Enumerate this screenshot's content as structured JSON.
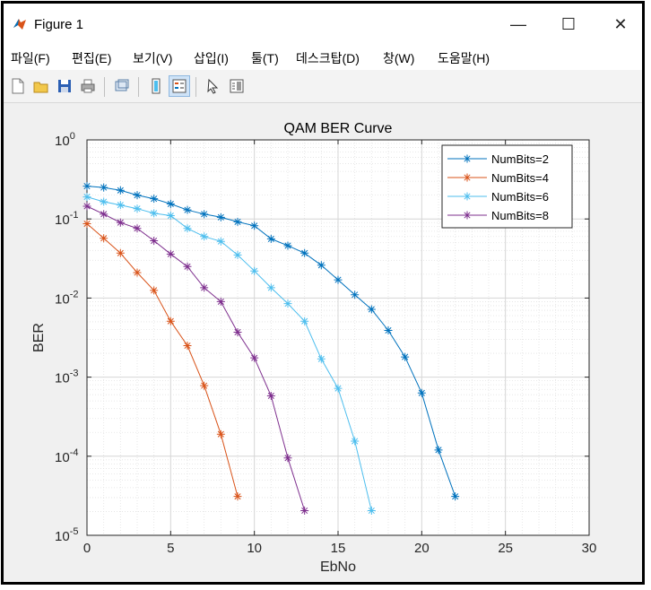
{
  "window": {
    "title": "Figure 1",
    "controls": {
      "minimize": "—",
      "maximize": "☐",
      "close": "✕"
    }
  },
  "menu": {
    "items": [
      "파일(F)",
      "편집(E)",
      "보기(V)",
      "삽입(I)",
      "툴(T)",
      "데스크탑(D)",
      "창(W)",
      "도움말(H)"
    ]
  },
  "toolbar": {
    "buttons": [
      "new-figure-icon",
      "open-file-icon",
      "save-icon",
      "print-icon",
      "link-icon",
      "colorbar-icon",
      "legend-icon",
      "pointer-icon",
      "property-inspector-icon"
    ]
  },
  "colors": {
    "series": [
      "#0072BD",
      "#D95319",
      "#4DBEEE",
      "#7E2F8E"
    ]
  },
  "chart_data": {
    "type": "line",
    "title": "QAM BER Curve",
    "xlabel": "EbNo",
    "ylabel": "BER",
    "xlim": [
      0,
      30
    ],
    "ylim": [
      1e-05,
      1
    ],
    "yscale": "log",
    "grid": true,
    "minor_grid": true,
    "legend_position": "top-right",
    "x_ticks": [
      0,
      5,
      10,
      15,
      20,
      25,
      30
    ],
    "x_tick_labels": [
      "0",
      "5",
      "10",
      "15",
      "20",
      "25",
      "30"
    ],
    "y_ticks": [
      1e-05,
      0.0001,
      0.001,
      0.01,
      0.1,
      1
    ],
    "y_tick_bases": [
      "10",
      "10",
      "10",
      "10",
      "10",
      "10"
    ],
    "y_tick_exps": [
      "-5",
      "-4",
      "-3",
      "-2",
      "-1",
      "0"
    ],
    "marker": "*",
    "series": [
      {
        "name": "NumBits=2",
        "x": [
          0,
          1,
          2,
          3,
          4,
          5,
          6,
          7,
          8,
          9,
          10,
          11,
          12,
          13,
          14,
          15,
          16,
          17,
          18,
          19,
          20,
          21,
          22
        ],
        "y": [
          0.26,
          0.25,
          0.23,
          0.2,
          0.18,
          0.155,
          0.13,
          0.115,
          0.105,
          0.092,
          0.082,
          0.056,
          0.046,
          0.037,
          0.026,
          0.017,
          0.011,
          0.0072,
          0.0039,
          0.0018,
          0.00063,
          0.00012,
          3.1e-05
        ]
      },
      {
        "name": "NumBits=4",
        "x": [
          0,
          1,
          2,
          3,
          4,
          5,
          6,
          7,
          8,
          9
        ],
        "y": [
          0.087,
          0.057,
          0.037,
          0.021,
          0.0125,
          0.0051,
          0.0025,
          0.00078,
          0.00019,
          3.1e-05
        ]
      },
      {
        "name": "NumBits=6",
        "x": [
          0,
          1,
          2,
          3,
          4,
          5,
          6,
          7,
          8,
          9,
          10,
          11,
          12,
          13,
          14,
          15,
          16,
          17
        ],
        "y": [
          0.19,
          0.165,
          0.15,
          0.135,
          0.118,
          0.11,
          0.076,
          0.06,
          0.052,
          0.035,
          0.022,
          0.0135,
          0.0085,
          0.0051,
          0.0017,
          0.00072,
          0.000155,
          2.05e-05
        ]
      },
      {
        "name": "NumBits=8",
        "x": [
          0,
          1,
          2,
          3,
          4,
          5,
          6,
          7,
          8,
          9,
          10,
          11,
          12,
          13
        ],
        "y": [
          0.145,
          0.115,
          0.09,
          0.076,
          0.053,
          0.036,
          0.025,
          0.0135,
          0.009,
          0.0037,
          0.00175,
          0.00058,
          9.5e-05,
          2.05e-05
        ]
      }
    ]
  }
}
